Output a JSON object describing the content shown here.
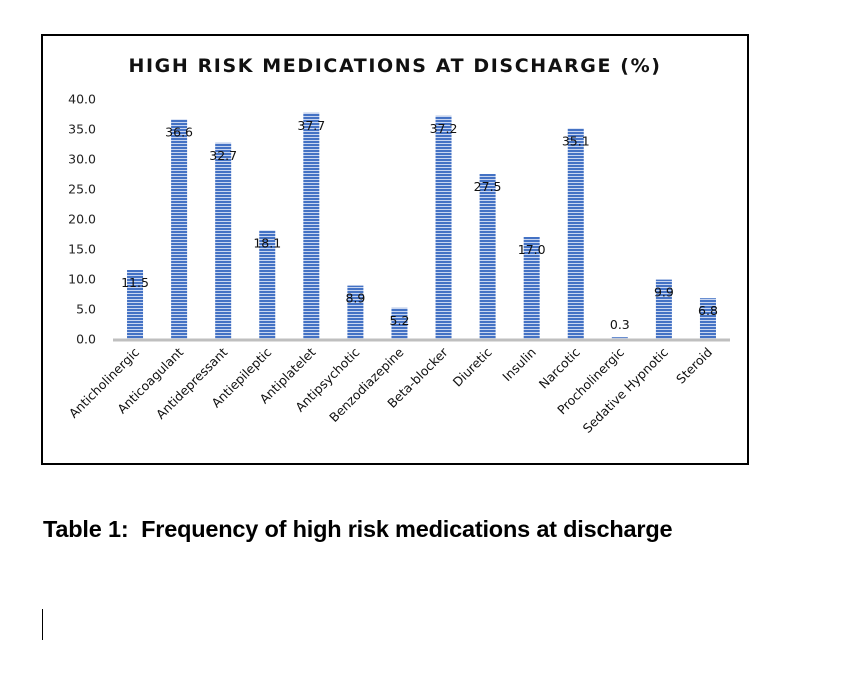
{
  "chart_data": {
    "type": "bar",
    "title": "HIGH RISK MEDICATIONS AT DISCHARGE (%)",
    "xlabel": "",
    "ylabel": "",
    "ylim": [
      0,
      40
    ],
    "yticks": [
      "0.0",
      "5.0",
      "10.0",
      "15.0",
      "20.0",
      "25.0",
      "30.0",
      "35.0",
      "40.0"
    ],
    "ytick_values": [
      0,
      5,
      10,
      15,
      20,
      25,
      30,
      35,
      40
    ],
    "grid": false,
    "legend": "none",
    "categories": [
      "Anticholinergic",
      "Anticoagulant",
      "Antidepressant",
      "Antiepileptic",
      "Antiplatelet",
      "Antipsychotic",
      "Benzodiazepine",
      "Beta-blocker",
      "Diuretic",
      "Insulin",
      "Narcotic",
      "Procholinergic",
      "Sedative Hypnotic",
      "Steroid"
    ],
    "values": [
      11.5,
      36.6,
      32.7,
      18.1,
      37.7,
      8.9,
      5.2,
      37.2,
      27.5,
      17.0,
      35.1,
      0.3,
      9.9,
      6.8
    ],
    "data_labels": [
      "11.5",
      "36.6",
      "32.7",
      "18.1",
      "37.7",
      "8.9",
      "5.2",
      "37.2",
      "27.5",
      "17.0",
      "35.1",
      "0.3",
      "9.9",
      "6.8"
    ],
    "bar_color": "#4472c4",
    "bar_stripe_color": "#c9d6f0",
    "axis_color": "#bfbfbf"
  },
  "caption": "Table 1:  Frequency of high risk medications at discharge"
}
